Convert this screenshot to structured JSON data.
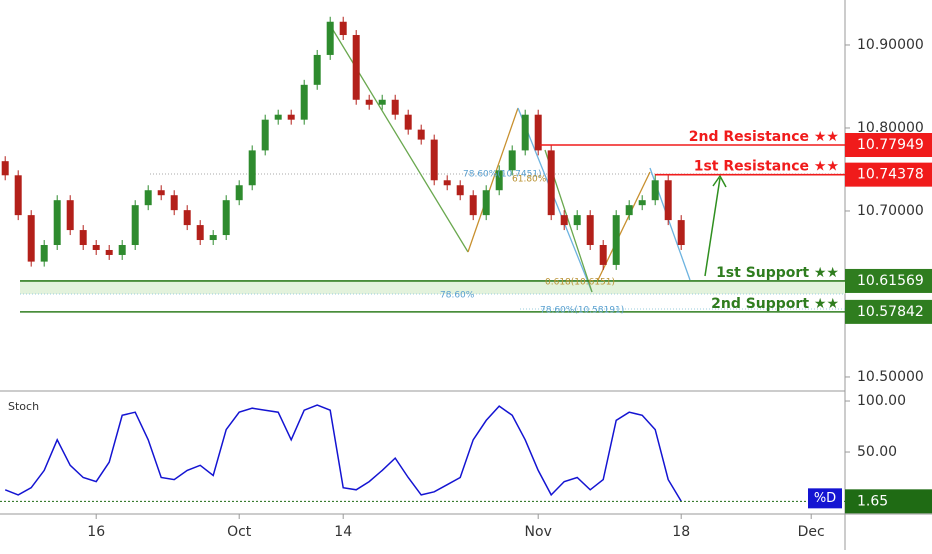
{
  "chart_data": [
    {
      "type": "candlestick",
      "x": [
        0,
        1,
        2,
        3,
        4,
        5,
        6,
        7,
        8,
        9,
        10,
        11,
        12,
        13,
        14,
        15,
        16,
        17,
        18,
        19,
        20,
        21,
        22,
        23,
        24,
        25,
        26,
        27,
        28,
        29,
        30,
        31,
        32,
        33,
        34,
        35,
        36,
        37,
        38,
        39,
        40,
        41,
        42,
        43,
        44,
        45,
        46,
        47,
        48,
        49,
        50,
        51,
        52
      ],
      "open": [
        10.76,
        10.743,
        10.695,
        10.639,
        10.659,
        10.713,
        10.677,
        10.659,
        10.653,
        10.647,
        10.659,
        10.707,
        10.725,
        10.719,
        10.701,
        10.683,
        10.665,
        10.671,
        10.713,
        10.731,
        10.773,
        10.81,
        10.816,
        10.81,
        10.852,
        10.888,
        10.928,
        10.912,
        10.834,
        10.828,
        10.834,
        10.816,
        10.798,
        10.786,
        10.737,
        10.731,
        10.719,
        10.695,
        10.725,
        10.749,
        10.773,
        10.816,
        10.773,
        10.695,
        10.683,
        10.695,
        10.659,
        10.635,
        10.695,
        10.707,
        10.713,
        10.737,
        10.689
      ],
      "high": [
        10.766,
        10.749,
        10.701,
        10.665,
        10.719,
        10.719,
        10.683,
        10.665,
        10.659,
        10.665,
        10.713,
        10.731,
        10.731,
        10.725,
        10.707,
        10.689,
        10.677,
        10.719,
        10.737,
        10.779,
        10.816,
        10.822,
        10.822,
        10.858,
        10.894,
        10.934,
        10.934,
        10.918,
        10.84,
        10.84,
        10.84,
        10.822,
        10.804,
        10.792,
        10.743,
        10.737,
        10.725,
        10.731,
        10.755,
        10.779,
        10.822,
        10.822,
        10.779,
        10.701,
        10.701,
        10.701,
        10.665,
        10.701,
        10.713,
        10.719,
        10.743,
        10.743,
        10.695
      ],
      "low": [
        10.737,
        10.689,
        10.633,
        10.633,
        10.653,
        10.671,
        10.653,
        10.647,
        10.641,
        10.641,
        10.653,
        10.701,
        10.713,
        10.695,
        10.677,
        10.659,
        10.659,
        10.665,
        10.707,
        10.725,
        10.767,
        10.804,
        10.804,
        10.804,
        10.846,
        10.882,
        10.906,
        10.828,
        10.822,
        10.822,
        10.81,
        10.792,
        10.78,
        10.731,
        10.725,
        10.713,
        10.689,
        10.689,
        10.719,
        10.743,
        10.767,
        10.767,
        10.689,
        10.677,
        10.677,
        10.653,
        10.629,
        10.629,
        10.689,
        10.701,
        10.707,
        10.683,
        10.653
      ],
      "close": [
        10.743,
        10.695,
        10.639,
        10.659,
        10.713,
        10.677,
        10.659,
        10.653,
        10.647,
        10.659,
        10.707,
        10.725,
        10.719,
        10.701,
        10.683,
        10.665,
        10.671,
        10.713,
        10.731,
        10.773,
        10.81,
        10.816,
        10.81,
        10.852,
        10.888,
        10.928,
        10.912,
        10.834,
        10.828,
        10.834,
        10.816,
        10.798,
        10.786,
        10.737,
        10.731,
        10.719,
        10.695,
        10.725,
        10.749,
        10.773,
        10.816,
        10.773,
        10.695,
        10.683,
        10.695,
        10.659,
        10.635,
        10.695,
        10.707,
        10.713,
        10.737,
        10.689,
        10.659
      ],
      "up_color": "#2e8b2e",
      "down_color": "#b3201a",
      "xlim": [
        -0.4,
        64.6
      ],
      "xticks": [
        {
          "value": 7,
          "label": "16"
        },
        {
          "value": 18,
          "label": "Oct"
        },
        {
          "value": 26,
          "label": "14"
        },
        {
          "value": 41,
          "label": "Nov"
        },
        {
          "value": 52,
          "label": "18"
        },
        {
          "value": 62,
          "label": "Dec"
        }
      ],
      "ylim": [
        10.4843,
        10.9542
      ],
      "yticks": [
        {
          "value": 10.5,
          "label": "10.50000"
        },
        {
          "value": 10.7,
          "label": "10.70000"
        },
        {
          "value": 10.8,
          "label": "10.80000"
        },
        {
          "value": 10.9,
          "label": "10.90000"
        }
      ],
      "levels": [
        {
          "label": "2nd Resistance ★★",
          "value": 10.77949,
          "color": "#f01b1b"
        },
        {
          "label": "1st Resistance ★★",
          "value": 10.74378,
          "color": "#f01b1b"
        },
        {
          "label": "1st Support ★★",
          "value": 10.61569,
          "color": "#2f7d1f"
        },
        {
          "label": "2nd Support ★★",
          "value": 10.57842,
          "color": "#2f7d1f"
        }
      ],
      "annotations": [
        "78.60%(10.7451)",
        "61.80%",
        "0.618(10.6151)",
        "78.60%",
        "78.60%(10.58191)"
      ]
    },
    {
      "type": "line",
      "title": "Stoch",
      "name": "%D",
      "color": "#1414d2",
      "x": [
        0,
        1,
        2,
        3,
        4,
        5,
        6,
        7,
        8,
        9,
        10,
        11,
        12,
        13,
        14,
        15,
        16,
        17,
        18,
        19,
        20,
        21,
        22,
        23,
        24,
        25,
        26,
        27,
        28,
        29,
        30,
        31,
        32,
        33,
        34,
        35,
        36,
        37,
        38,
        39,
        40,
        41,
        42,
        43,
        44,
        45,
        46,
        47,
        48,
        49,
        50,
        51,
        52
      ],
      "values": [
        13,
        8,
        15,
        32,
        62,
        37,
        25,
        21,
        40,
        86,
        89,
        62,
        25,
        23,
        32,
        37,
        27,
        72,
        89,
        93,
        91,
        89,
        62,
        91,
        96,
        91,
        15,
        13,
        21,
        32,
        44,
        25,
        8,
        11,
        18,
        25,
        62,
        81,
        95,
        86,
        62,
        32,
        8,
        21,
        25,
        13,
        23,
        81,
        89,
        86,
        72,
        23,
        1.65
      ],
      "last_color": "#1f6b14",
      "xlim": [
        -0.4,
        64.6
      ],
      "ylim": [
        -8.8,
        105.9
      ],
      "yticks": [
        {
          "value": 50,
          "label": "50.00"
        },
        {
          "value": 100,
          "label": "100.00"
        }
      ]
    }
  ]
}
